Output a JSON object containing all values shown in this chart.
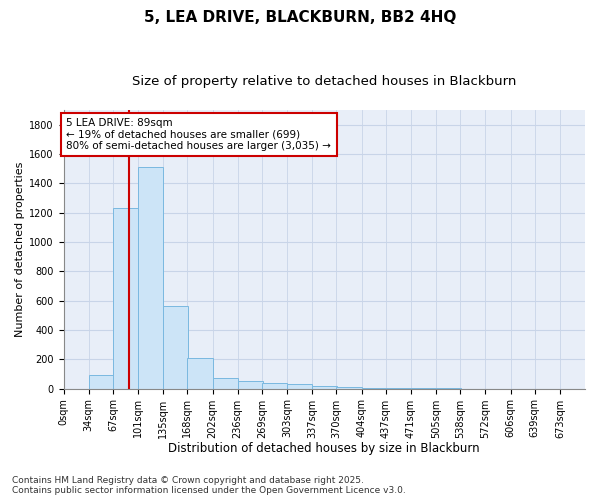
{
  "title": "5, LEA DRIVE, BLACKBURN, BB2 4HQ",
  "subtitle": "Size of property relative to detached houses in Blackburn",
  "xlabel": "Distribution of detached houses by size in Blackburn",
  "ylabel": "Number of detached properties",
  "bin_labels": [
    "0sqm",
    "34sqm",
    "67sqm",
    "101sqm",
    "135sqm",
    "168sqm",
    "202sqm",
    "236sqm",
    "269sqm",
    "303sqm",
    "337sqm",
    "370sqm",
    "404sqm",
    "437sqm",
    "471sqm",
    "505sqm",
    "538sqm",
    "572sqm",
    "606sqm",
    "639sqm",
    "673sqm"
  ],
  "bin_edges": [
    0,
    34,
    67,
    101,
    135,
    168,
    202,
    236,
    269,
    303,
    337,
    370,
    404,
    437,
    471,
    505,
    538,
    572,
    606,
    639,
    673,
    707
  ],
  "bar_heights": [
    0,
    95,
    1230,
    1510,
    565,
    210,
    70,
    50,
    40,
    30,
    20,
    10,
    5,
    3,
    2,
    1,
    0,
    0,
    0,
    0,
    0
  ],
  "bar_color": "#cce4f7",
  "bar_edge_color": "#7ab8e0",
  "property_value": 89,
  "red_line_color": "#cc0000",
  "annotation_line1": "5 LEA DRIVE: 89sqm",
  "annotation_line2": "← 19% of detached houses are smaller (699)",
  "annotation_line3": "80% of semi-detached houses are larger (3,035) →",
  "annotation_box_color": "#cc0000",
  "annotation_fill": "#ffffff",
  "ylim": [
    0,
    1900
  ],
  "yticks": [
    0,
    200,
    400,
    600,
    800,
    1000,
    1200,
    1400,
    1600,
    1800
  ],
  "grid_color": "#c8d4e8",
  "background_color": "#e8eef8",
  "footer_text": "Contains HM Land Registry data © Crown copyright and database right 2025.\nContains public sector information licensed under the Open Government Licence v3.0.",
  "title_fontsize": 11,
  "subtitle_fontsize": 9.5,
  "xlabel_fontsize": 8.5,
  "ylabel_fontsize": 8,
  "tick_fontsize": 7,
  "annotation_fontsize": 7.5,
  "footer_fontsize": 6.5
}
